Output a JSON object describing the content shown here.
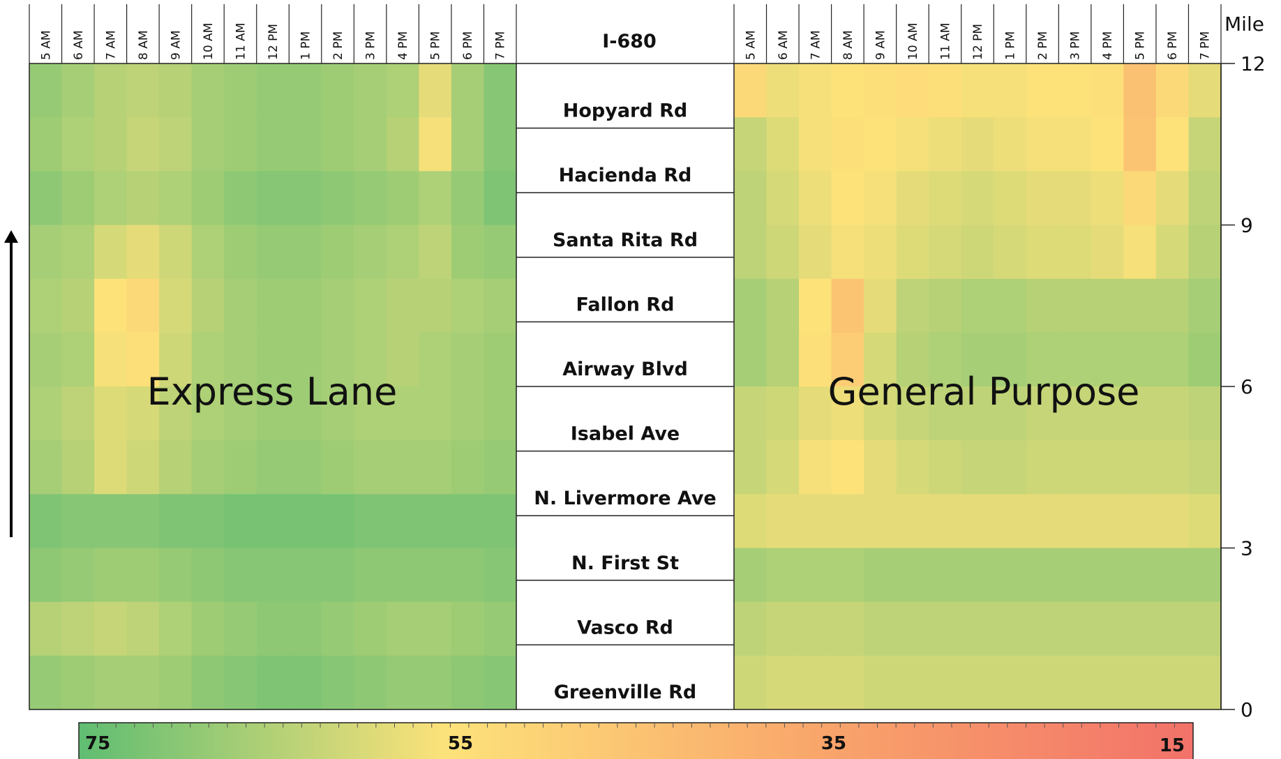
{
  "chart_data": {
    "type": "heatmap",
    "panels": [
      {
        "name": "Express Lane",
        "hours": [
          "5 AM",
          "6 AM",
          "7 AM",
          "8 AM",
          "9 AM",
          "10 AM",
          "11 AM",
          "12 PM",
          "1 PM",
          "2 PM",
          "3 PM",
          "4 PM",
          "5 PM",
          "6 PM",
          "7 PM"
        ],
        "mile_bands": [
          12,
          11,
          10,
          9,
          8,
          7,
          6,
          5,
          4,
          3,
          2,
          1
        ],
        "values": [
          [
            68,
            66,
            64,
            63,
            64,
            66,
            67,
            68,
            68,
            67,
            66,
            65,
            58,
            66,
            70
          ],
          [
            67,
            65,
            64,
            62,
            63,
            66,
            67,
            68,
            68,
            67,
            66,
            64,
            56,
            66,
            70
          ],
          [
            69,
            67,
            65,
            64,
            65,
            67,
            69,
            70,
            70,
            69,
            68,
            67,
            65,
            68,
            71
          ],
          [
            66,
            65,
            60,
            58,
            61,
            65,
            67,
            68,
            68,
            67,
            66,
            65,
            63,
            67,
            68
          ],
          [
            65,
            64,
            55,
            52,
            60,
            64,
            66,
            67,
            67,
            66,
            65,
            64,
            64,
            65,
            66
          ],
          [
            66,
            65,
            56,
            54,
            61,
            65,
            66,
            67,
            67,
            66,
            65,
            64,
            65,
            66,
            67
          ],
          [
            65,
            63,
            59,
            60,
            63,
            65,
            66,
            67,
            67,
            66,
            65,
            65,
            65,
            66,
            67
          ],
          [
            66,
            64,
            59,
            61,
            64,
            66,
            67,
            68,
            68,
            67,
            66,
            66,
            66,
            67,
            68
          ],
          [
            71,
            70,
            70,
            70,
            71,
            71,
            72,
            72,
            72,
            72,
            71,
            71,
            71,
            71,
            71
          ],
          [
            69,
            68,
            67,
            67,
            68,
            69,
            70,
            70,
            70,
            70,
            69,
            69,
            69,
            69,
            70
          ],
          [
            64,
            63,
            62,
            63,
            65,
            67,
            68,
            69,
            69,
            68,
            67,
            66,
            66,
            67,
            68
          ],
          [
            68,
            67,
            66,
            66,
            67,
            69,
            70,
            71,
            71,
            70,
            69,
            68,
            68,
            69,
            70
          ]
        ]
      },
      {
        "name": "General Purpose",
        "hours": [
          "5 AM",
          "6 AM",
          "7 AM",
          "8 AM",
          "9 AM",
          "10 AM",
          "11 AM",
          "12 PM",
          "1 PM",
          "2 PM",
          "3 PM",
          "4 PM",
          "5 PM",
          "6 PM",
          "7 PM"
        ],
        "mile_bands": [
          12,
          11,
          10,
          9,
          8,
          7,
          6,
          5,
          4,
          3,
          2,
          1
        ],
        "values": [
          [
            52,
            57,
            56,
            55,
            54,
            53,
            54,
            56,
            56,
            55,
            55,
            54,
            44,
            52,
            58
          ],
          [
            62,
            59,
            56,
            54,
            55,
            56,
            57,
            58,
            57,
            56,
            56,
            55,
            45,
            55,
            62
          ],
          [
            63,
            60,
            57,
            55,
            56,
            58,
            59,
            60,
            59,
            58,
            58,
            57,
            52,
            58,
            63
          ],
          [
            63,
            61,
            58,
            56,
            57,
            59,
            60,
            61,
            60,
            59,
            59,
            58,
            56,
            60,
            64
          ],
          [
            66,
            64,
            55,
            45,
            58,
            63,
            64,
            65,
            65,
            64,
            64,
            64,
            64,
            64,
            66
          ],
          [
            66,
            64,
            54,
            48,
            60,
            64,
            65,
            66,
            66,
            65,
            65,
            65,
            65,
            65,
            67
          ],
          [
            62,
            61,
            58,
            57,
            60,
            62,
            63,
            63,
            63,
            62,
            62,
            62,
            62,
            62,
            63
          ],
          [
            62,
            60,
            56,
            55,
            58,
            60,
            61,
            62,
            62,
            61,
            61,
            61,
            61,
            61,
            62
          ],
          [
            59,
            58,
            58,
            58,
            58,
            58,
            58,
            58,
            58,
            58,
            58,
            58,
            58,
            58,
            59
          ],
          [
            66,
            65,
            65,
            65,
            66,
            66,
            66,
            66,
            66,
            66,
            66,
            66,
            66,
            66,
            66
          ],
          [
            63,
            62,
            62,
            62,
            63,
            63,
            63,
            63,
            63,
            63,
            63,
            63,
            63,
            63,
            63
          ],
          [
            61,
            60,
            60,
            60,
            61,
            61,
            61,
            61,
            61,
            61,
            61,
            61,
            61,
            61,
            61
          ]
        ]
      }
    ],
    "corridor_label": "I-680",
    "interchanges": [
      "Hopyard Rd",
      "Hacienda Rd",
      "Santa Rita Rd",
      "Fallon Rd",
      "Airway Blvd",
      "Isabel Ave",
      "N. Livermore Ave",
      "N. First St",
      "Vasco Rd",
      "Greenville Rd"
    ],
    "y_axis": {
      "label": "Mile",
      "ticks": [
        12,
        9,
        6,
        3,
        0
      ],
      "range": [
        0,
        12
      ]
    },
    "color_scale": {
      "labels": [
        "75",
        "55",
        "35",
        "15"
      ],
      "range": [
        75,
        15
      ],
      "stops": [
        "#5fbd72",
        "#fde27a",
        "#f9a66b",
        "#f27269"
      ]
    }
  }
}
